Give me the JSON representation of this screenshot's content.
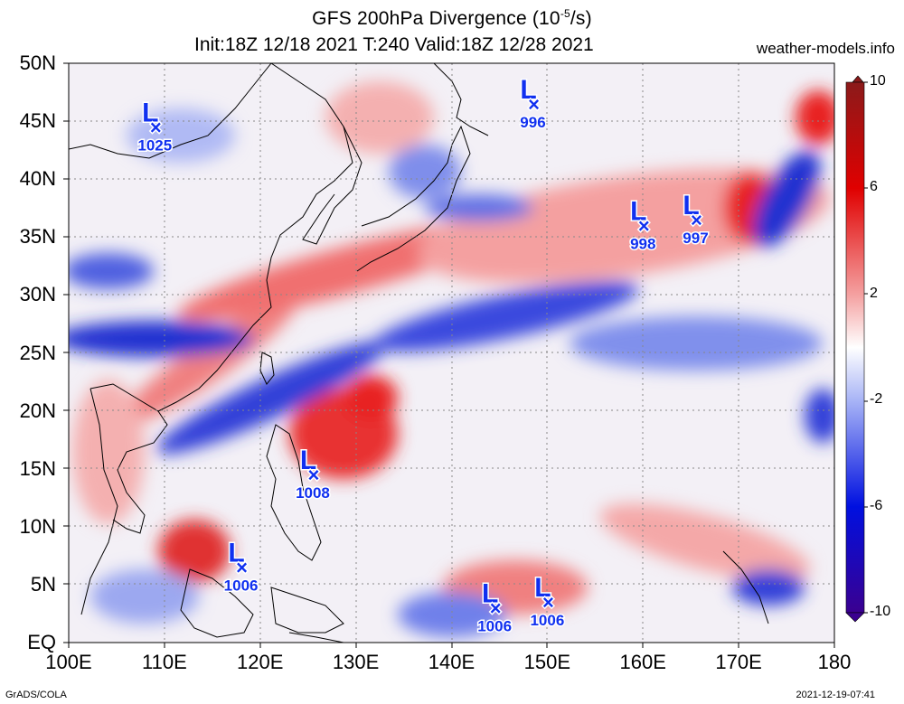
{
  "title": "GFS 200hPa Divergence (10",
  "title_exp": "-5",
  "title_end": "/s)",
  "subtitle": "Init:18Z 12/18 2021 T:240 Valid:18Z 12/28 2021",
  "site": "weather-models.info",
  "footer_left": "GrADS/COLA",
  "footer_right": "2021-12-19-07:41",
  "lat_labels": [
    "50N",
    "45N",
    "40N",
    "35N",
    "30N",
    "25N",
    "20N",
    "15N",
    "10N",
    "5N",
    "EQ"
  ],
  "lon_labels": [
    "100E",
    "110E",
    "120E",
    "130E",
    "140E",
    "150E",
    "160E",
    "170E",
    "180"
  ],
  "colorbar": {
    "labels": [
      "10",
      "6",
      "2",
      "-2",
      "-6",
      "-10"
    ],
    "colors": [
      "#8b1a1a",
      "#e00000",
      "#f07070",
      "#fbd0d0",
      "#ffffff",
      "#d0d8fb",
      "#7080f0",
      "#0000e0",
      "#3a0090"
    ]
  },
  "lows": [
    {
      "pressure": "1025",
      "lon": 109,
      "lat": 44.5
    },
    {
      "pressure": "996",
      "lon": 148.5,
      "lat": 46.5
    },
    {
      "pressure": "998",
      "lon": 160,
      "lat": 36
    },
    {
      "pressure": "997",
      "lon": 165.5,
      "lat": 36.5
    },
    {
      "pressure": "1008",
      "lon": 125.5,
      "lat": 14.5
    },
    {
      "pressure": "1006",
      "lon": 118,
      "lat": 6.5
    },
    {
      "pressure": "1006",
      "lon": 144.5,
      "lat": 3
    },
    {
      "pressure": "1006",
      "lon": 150,
      "lat": 3.5
    }
  ],
  "low_symbol": "L",
  "low_marker": "×"
}
